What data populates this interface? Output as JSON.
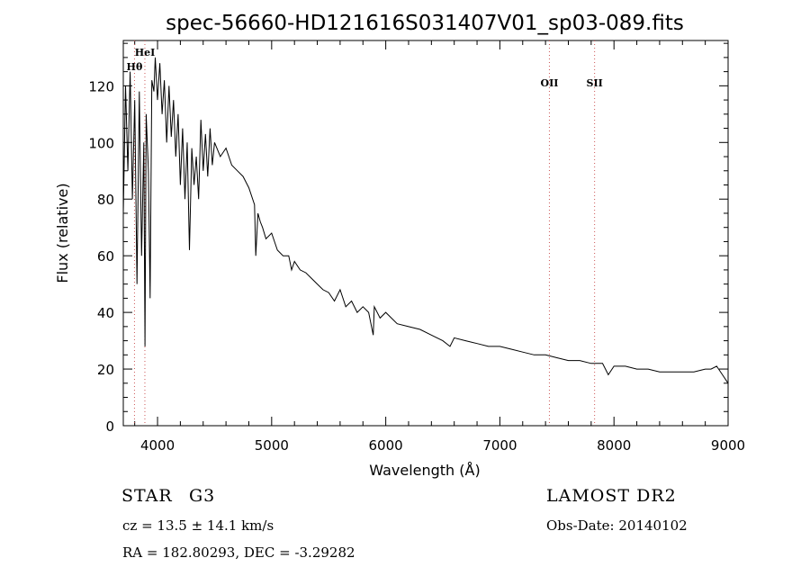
{
  "chart_data": {
    "type": "line",
    "title": "spec-56660-HD121616S031407V01_sp03-089.fits",
    "xlabel": "Wavelength (Å)",
    "ylabel": "Flux (relative)",
    "xlim": [
      3700,
      9000
    ],
    "ylim": [
      0,
      136
    ],
    "x_ticks": [
      4000,
      5000,
      6000,
      7000,
      8000,
      9000
    ],
    "y_ticks": [
      0,
      20,
      40,
      60,
      80,
      100,
      120
    ],
    "line_color": "#000000",
    "marker_color": "#cc5555",
    "grid": false,
    "series": [
      {
        "x": [
          3700,
          3720,
          3740,
          3760,
          3780,
          3800,
          3820,
          3840,
          3860,
          3880,
          3890,
          3900,
          3920,
          3935,
          3950,
          3968,
          3980,
          4000,
          4020,
          4040,
          4060,
          4080,
          4101,
          4120,
          4140,
          4160,
          4180,
          4200,
          4220,
          4240,
          4260,
          4280,
          4300,
          4320,
          4340,
          4360,
          4380,
          4400,
          4420,
          4440,
          4460,
          4480,
          4500,
          4550,
          4600,
          4650,
          4700,
          4750,
          4800,
          4850,
          4861,
          4880,
          4900,
          4920,
          4950,
          5000,
          5050,
          5100,
          5150,
          5175,
          5200,
          5250,
          5300,
          5350,
          5400,
          5450,
          5500,
          5550,
          5600,
          5650,
          5700,
          5750,
          5800,
          5850,
          5890,
          5900,
          5950,
          6000,
          6100,
          6200,
          6300,
          6400,
          6500,
          6563,
          6600,
          6700,
          6800,
          6900,
          7000,
          7100,
          7200,
          7300,
          7400,
          7500,
          7600,
          7700,
          7800,
          7900,
          7950,
          8000,
          8100,
          8200,
          8300,
          8400,
          8500,
          8600,
          8700,
          8800,
          8850,
          8900,
          8950,
          9000
        ],
        "y": [
          75,
          120,
          90,
          125,
          80,
          115,
          50,
          118,
          60,
          100,
          28,
          110,
          90,
          45,
          122,
          118,
          130,
          115,
          128,
          110,
          122,
          100,
          120,
          102,
          115,
          95,
          110,
          85,
          105,
          80,
          100,
          62,
          98,
          85,
          95,
          80,
          108,
          90,
          103,
          88,
          105,
          92,
          100,
          95,
          98,
          92,
          90,
          88,
          84,
          78,
          60,
          75,
          72,
          70,
          66,
          68,
          62,
          60,
          60,
          55,
          58,
          55,
          54,
          52,
          50,
          48,
          47,
          44,
          48,
          42,
          44,
          40,
          42,
          40,
          32,
          42,
          38,
          40,
          36,
          35,
          34,
          32,
          30,
          28,
          31,
          30,
          29,
          28,
          28,
          27,
          26,
          25,
          25,
          24,
          23,
          23,
          22,
          22,
          18,
          21,
          21,
          20,
          20,
          19,
          19,
          19,
          19,
          20,
          20,
          21,
          18,
          15
        ]
      }
    ],
    "line_markers": [
      {
        "label": "Hθ",
        "x": 3798,
        "row": 2
      },
      {
        "label": "HeI",
        "x": 3889,
        "row": 1
      },
      {
        "label": "OII",
        "x": 7434,
        "row": 3
      },
      {
        "label": "SII",
        "x": 7830,
        "row": 3
      }
    ]
  },
  "info": {
    "object_class": "STAR",
    "subclass": "G3",
    "survey": "LAMOST DR2",
    "redshift": "cz = 13.5 ± 14.1 km/s",
    "obs_date": "Obs-Date: 20140102",
    "coords": "RA = 182.80293, DEC =  -3.29282"
  }
}
